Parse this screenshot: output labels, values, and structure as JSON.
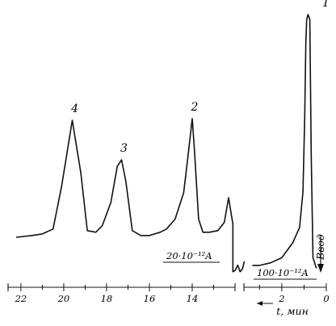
{
  "chart_data": {
    "type": "line",
    "title": "",
    "xlabel": "t, мин",
    "x_direction": "reversed",
    "axis_break": true,
    "xaxis_segments": [
      {
        "range": [
          22.6,
          12.0
        ],
        "ticks": [
          "22",
          "20",
          "18",
          "16",
          "14"
        ]
      },
      {
        "range": [
          3.7,
          0.0
        ],
        "ticks": [
          "2",
          "0"
        ]
      }
    ],
    "series": [
      {
        "sensitivity_label": "20·10⁻¹²A",
        "peaks": [
          {
            "label": "4",
            "t": 19.6,
            "height": 0.72
          },
          {
            "label": "3",
            "t": 17.3,
            "height": 0.48
          },
          {
            "label": "2",
            "t": 14.0,
            "height": 0.73
          }
        ],
        "x": [
          22.2,
          21.5,
          21.0,
          20.5,
          20.1,
          19.6,
          19.2,
          18.9,
          18.5,
          18.2,
          17.8,
          17.5,
          17.3,
          17.1,
          16.8,
          16.4,
          16.0,
          15.5,
          15.2,
          14.8,
          14.4,
          14.2,
          14.0,
          13.9,
          13.7,
          13.5,
          13.2,
          12.8,
          12.5,
          12.3,
          12.1
        ],
        "y": [
          0.01,
          0.02,
          0.03,
          0.06,
          0.32,
          0.72,
          0.4,
          0.05,
          0.04,
          0.08,
          0.22,
          0.44,
          0.48,
          0.35,
          0.05,
          0.02,
          0.02,
          0.04,
          0.06,
          0.12,
          0.28,
          0.5,
          0.73,
          0.55,
          0.12,
          0.04,
          0.04,
          0.05,
          0.1,
          0.25,
          0.09
        ]
      },
      {
        "sensitivity_label": "100·10⁻¹²A",
        "peaks": [
          {
            "label": "1",
            "t": 0.82,
            "height": 1.0
          }
        ],
        "injection_label": "Ввод",
        "x": [
          3.3,
          3.0,
          2.5,
          2.0,
          1.5,
          1.2,
          1.05,
          0.97,
          0.92,
          0.88,
          0.82,
          0.74,
          0.68,
          0.6,
          0.45
        ],
        "y": [
          0.01,
          0.01,
          0.02,
          0.04,
          0.1,
          0.16,
          0.3,
          0.6,
          0.88,
          0.98,
          1.0,
          0.98,
          0.45,
          0.04,
          0.0
        ]
      }
    ]
  }
}
